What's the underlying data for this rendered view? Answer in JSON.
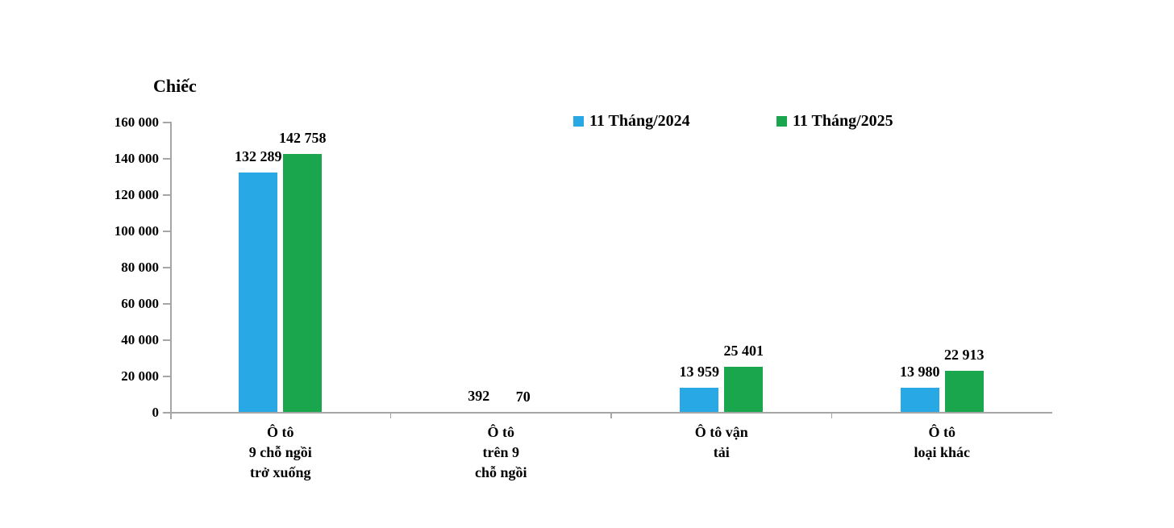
{
  "chart_data": {
    "type": "bar",
    "ylabel": "Chiếc",
    "xlabel": "",
    "categories": [
      "Ô tô 9 chỗ ngồi trở xuống",
      "Ô tô trên 9 chỗ ngồi",
      "Ô tô vận tải",
      "Ô tô loại khác"
    ],
    "category_lines": [
      [
        "Ô tô",
        "9 chỗ ngồi",
        "trở xuống"
      ],
      [
        "Ô tô",
        "trên 9",
        "chỗ ngồi"
      ],
      [
        "Ô tô vận",
        "tải"
      ],
      [
        "Ô tô",
        "loại khác"
      ]
    ],
    "series": [
      {
        "name": "11 Tháng/2024",
        "color": "#28A9E5",
        "values": [
          132289,
          392,
          13959,
          13980
        ],
        "value_labels": [
          "132 289",
          "392",
          "13 959",
          "13 980"
        ]
      },
      {
        "name": "11 Tháng/2025",
        "color": "#19A64D",
        "values": [
          142758,
          70,
          25401,
          22913
        ],
        "value_labels": [
          "142 758",
          "70",
          "25 401",
          "22 913"
        ]
      }
    ],
    "ylim": [
      0,
      160000
    ],
    "yticks": [
      0,
      20000,
      40000,
      60000,
      80000,
      100000,
      120000,
      140000,
      160000
    ],
    "ytick_labels": [
      "0",
      "20 000",
      "40 000",
      "60 000",
      "80 000",
      "100 000",
      "120 000",
      "140 000",
      "160 000"
    ],
    "grid": false,
    "legend_position": "top",
    "axis_color": "#A6A6A6",
    "text_color": "#000000",
    "background_color": "#FFFFFF"
  }
}
